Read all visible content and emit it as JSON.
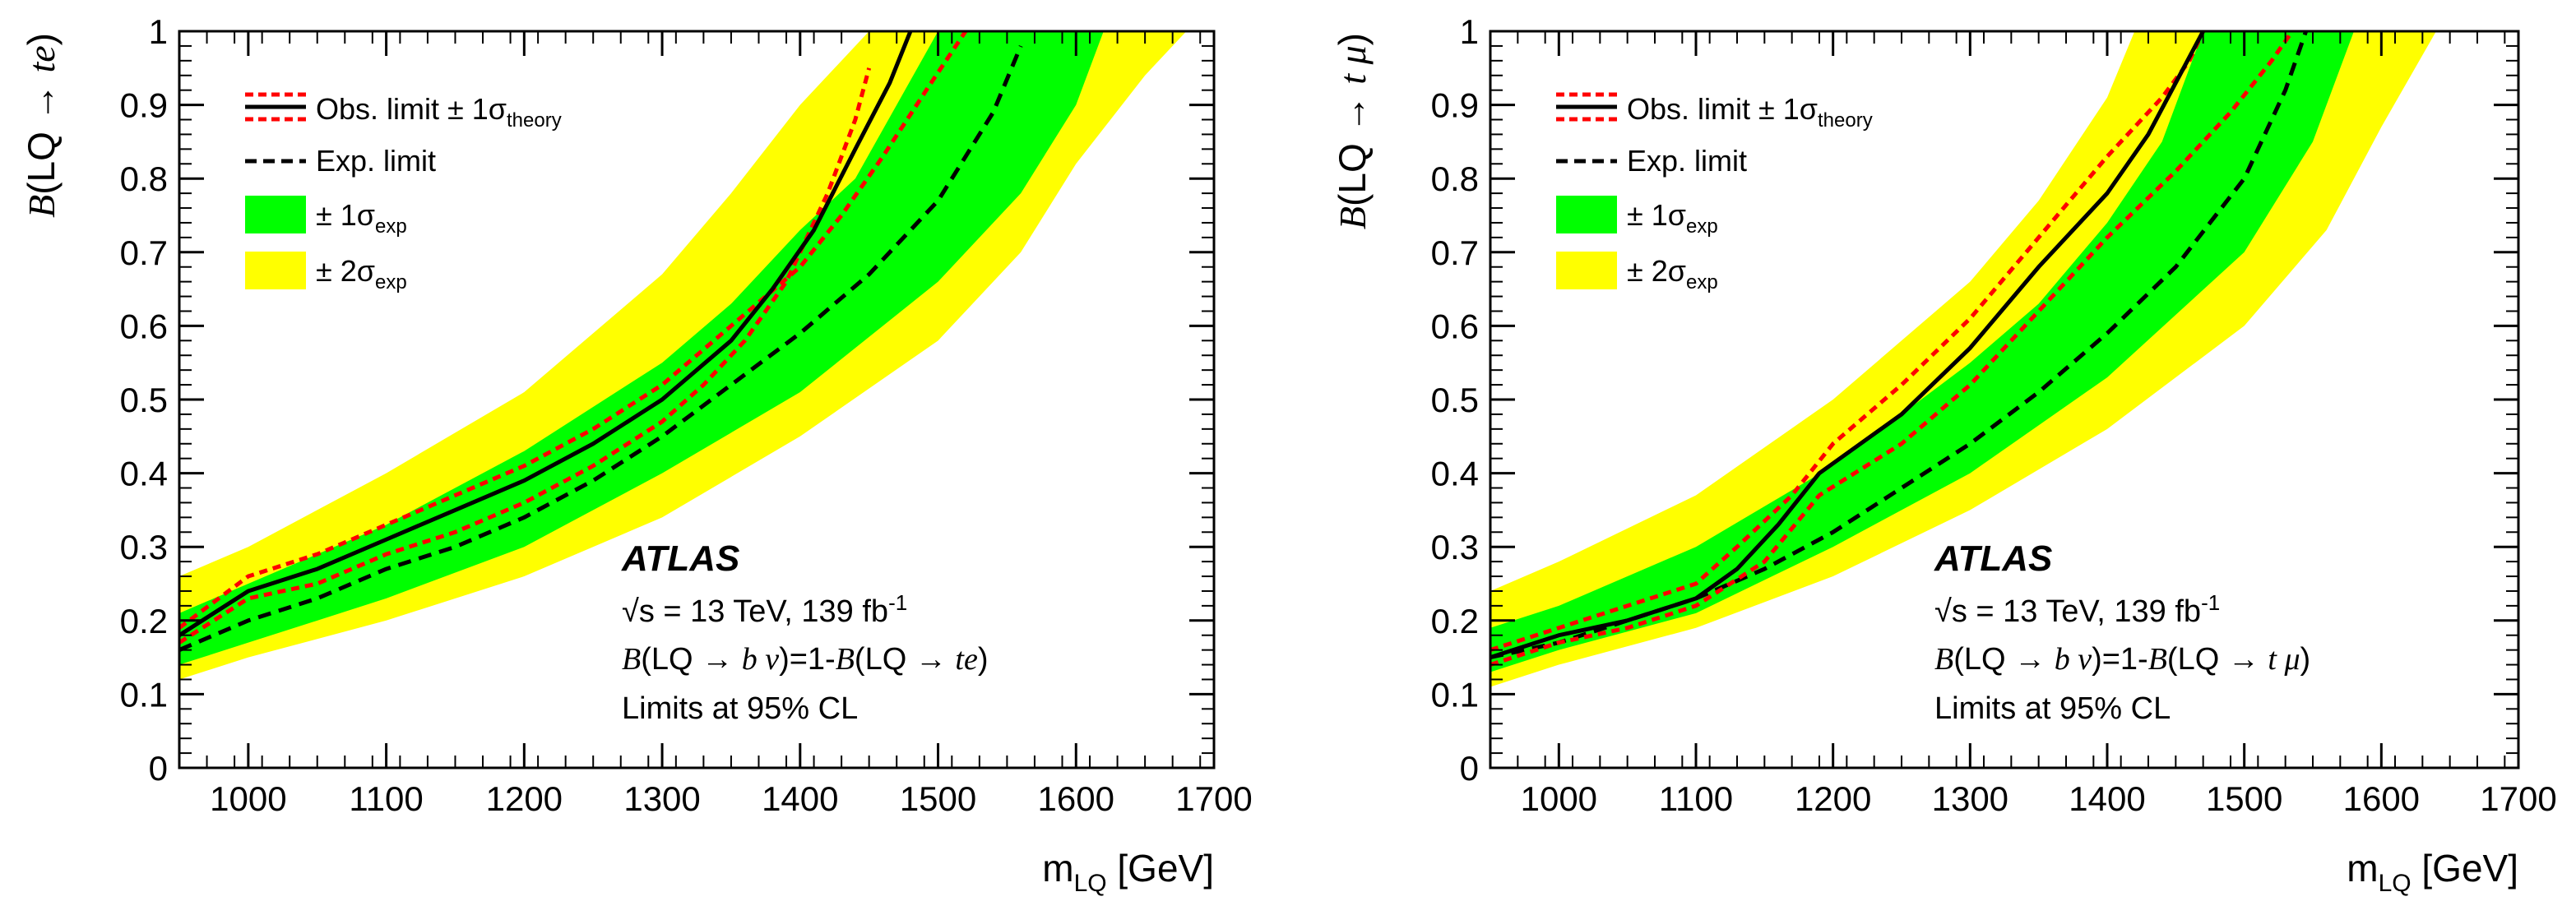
{
  "chart_data": [
    {
      "type": "line",
      "ylabel": {
        "prefix": "B",
        "text": "(LQ → ",
        "channel": "te",
        "suffix": ")"
      },
      "xlabel": {
        "main": "m",
        "sub": "LQ",
        "unit": " [GeV]"
      },
      "xlim": [
        950,
        1700
      ],
      "ylim": [
        0,
        1
      ],
      "xticks": [
        "1000",
        "1100",
        "1200",
        "1300",
        "1400",
        "1500",
        "1600",
        "1700"
      ],
      "yticks": [
        "0",
        "0.1",
        "0.2",
        "0.3",
        "0.4",
        "0.5",
        "0.6",
        "0.7",
        "0.8",
        "0.9",
        "1"
      ],
      "legend": {
        "obs": "Obs. limit ± 1σ",
        "obs_sub": "theory",
        "exp": "Exp. limit",
        "s1": "± 1σ",
        "s1_sub": "exp",
        "s2": "± 2σ",
        "s2_sub": "exp"
      },
      "annotation": {
        "experiment": "ATLAS",
        "energy": "√s = 13 TeV, 139 fb",
        "energy_sup": "-1",
        "br_prefix": "B",
        "br_mid": "(LQ → ",
        "br_bnu": "b ν",
        "br_eq": ")=1-",
        "br_b2": "B",
        "br_tail": "(LQ → ",
        "br_channel": "te",
        "br_close": ")",
        "cl": "Limits at 95% CL"
      },
      "colors": {
        "obs": "#000000",
        "theory": "#ff0000",
        "exp": "#000000",
        "band1": "#00ff00",
        "band2": "#ffff00"
      },
      "series": [
        {
          "name": "Observed",
          "x": [
            950,
            1000,
            1050,
            1100,
            1150,
            1200,
            1250,
            1300,
            1350,
            1380,
            1410,
            1440,
            1465,
            1480
          ],
          "y": [
            0.18,
            0.24,
            0.27,
            0.31,
            0.35,
            0.39,
            0.44,
            0.5,
            0.58,
            0.65,
            0.73,
            0.84,
            0.93,
            1.0
          ]
        },
        {
          "name": "Observed +1σ theory",
          "x": [
            950,
            1000,
            1050,
            1100,
            1150,
            1200,
            1250,
            1300,
            1350,
            1400,
            1430,
            1460,
            1495,
            1520
          ],
          "y": [
            0.19,
            0.26,
            0.29,
            0.33,
            0.37,
            0.41,
            0.46,
            0.52,
            0.6,
            0.68,
            0.75,
            0.83,
            0.93,
            1.0
          ]
        },
        {
          "name": "Observed -1σ theory",
          "x": [
            950,
            1000,
            1050,
            1100,
            1150,
            1200,
            1250,
            1300,
            1330,
            1360,
            1390,
            1420,
            1440,
            1450
          ],
          "y": [
            0.17,
            0.23,
            0.25,
            0.29,
            0.32,
            0.36,
            0.41,
            0.47,
            0.52,
            0.58,
            0.66,
            0.78,
            0.88,
            0.95
          ]
        },
        {
          "name": "Expected",
          "x": [
            950,
            1000,
            1050,
            1100,
            1150,
            1200,
            1250,
            1300,
            1350,
            1400,
            1450,
            1500,
            1540,
            1560
          ],
          "y": [
            0.16,
            0.2,
            0.23,
            0.27,
            0.3,
            0.34,
            0.39,
            0.45,
            0.52,
            0.59,
            0.67,
            0.77,
            0.89,
            0.98
          ]
        }
      ],
      "bands": [
        {
          "name": "± 2σ exp",
          "upper": {
            "x": [
              950,
              1000,
              1100,
              1200,
              1300,
              1350,
              1400,
              1450
            ],
            "y": [
              0.26,
              0.3,
              0.4,
              0.51,
              0.67,
              0.78,
              0.9,
              1.0
            ]
          },
          "lower": {
            "x": [
              950,
              1000,
              1100,
              1200,
              1300,
              1400,
              1500,
              1560,
              1600,
              1650,
              1680
            ],
            "y": [
              0.12,
              0.15,
              0.2,
              0.26,
              0.34,
              0.45,
              0.58,
              0.7,
              0.82,
              0.94,
              1.0
            ]
          }
        },
        {
          "name": "± 1σ exp",
          "upper": {
            "x": [
              950,
              1000,
              1100,
              1200,
              1300,
              1350,
              1400,
              1440,
              1470,
              1500
            ],
            "y": [
              0.21,
              0.25,
              0.33,
              0.43,
              0.55,
              0.63,
              0.73,
              0.8,
              0.9,
              1.0
            ]
          },
          "lower": {
            "x": [
              950,
              1000,
              1100,
              1200,
              1300,
              1400,
              1500,
              1560,
              1600,
              1620
            ],
            "y": [
              0.14,
              0.17,
              0.23,
              0.3,
              0.4,
              0.51,
              0.66,
              0.78,
              0.9,
              1.0
            ]
          }
        }
      ]
    },
    {
      "type": "line",
      "ylabel": {
        "prefix": "B",
        "text": "(LQ → ",
        "channel": "t μ",
        "suffix": ")"
      },
      "xlabel": {
        "main": "m",
        "sub": "LQ",
        "unit": " [GeV]"
      },
      "xlim": [
        950,
        1700
      ],
      "ylim": [
        0,
        1
      ],
      "xticks": [
        "1000",
        "1100",
        "1200",
        "1300",
        "1400",
        "1500",
        "1600",
        "1700"
      ],
      "yticks": [
        "0",
        "0.1",
        "0.2",
        "0.3",
        "0.4",
        "0.5",
        "0.6",
        "0.7",
        "0.8",
        "0.9",
        "1"
      ],
      "legend": {
        "obs": "Obs. limit ± 1σ",
        "obs_sub": "theory",
        "exp": "Exp. limit",
        "s1": "± 1σ",
        "s1_sub": "exp",
        "s2": "± 2σ",
        "s2_sub": "exp"
      },
      "annotation": {
        "experiment": "ATLAS",
        "energy": "√s = 13 TeV, 139 fb",
        "energy_sup": "-1",
        "br_prefix": "B",
        "br_mid": "(LQ → ",
        "br_bnu": "b ν",
        "br_eq": ")=1-",
        "br_b2": "B",
        "br_tail": "(LQ → ",
        "br_channel": "t μ",
        "br_close": ")",
        "cl": "Limits at 95% CL"
      },
      "colors": {
        "obs": "#000000",
        "theory": "#ff0000",
        "exp": "#000000",
        "band1": "#00ff00",
        "band2": "#ffff00"
      },
      "series": [
        {
          "name": "Observed",
          "x": [
            950,
            1000,
            1050,
            1100,
            1130,
            1160,
            1190,
            1250,
            1300,
            1350,
            1400,
            1430,
            1450,
            1470
          ],
          "y": [
            0.15,
            0.18,
            0.2,
            0.23,
            0.27,
            0.33,
            0.4,
            0.48,
            0.57,
            0.68,
            0.78,
            0.86,
            0.93,
            1.0
          ]
        },
        {
          "name": "Observed +1σ theory",
          "x": [
            950,
            1000,
            1050,
            1100,
            1130,
            1170,
            1200,
            1250,
            1300,
            1350,
            1400,
            1440,
            1460,
            1470
          ],
          "y": [
            0.16,
            0.19,
            0.22,
            0.25,
            0.3,
            0.37,
            0.44,
            0.52,
            0.61,
            0.72,
            0.83,
            0.91,
            0.96,
            1.0
          ]
        },
        {
          "name": "Observed -1σ theory",
          "x": [
            950,
            1000,
            1050,
            1100,
            1150,
            1190,
            1250,
            1300,
            1350,
            1400,
            1450,
            1490,
            1520,
            1535
          ],
          "y": [
            0.14,
            0.17,
            0.19,
            0.22,
            0.28,
            0.37,
            0.44,
            0.52,
            0.62,
            0.72,
            0.81,
            0.89,
            0.96,
            1.0
          ]
        },
        {
          "name": "Expected",
          "x": [
            950,
            1000,
            1050,
            1100,
            1150,
            1200,
            1250,
            1300,
            1350,
            1400,
            1450,
            1500,
            1530,
            1545
          ],
          "y": [
            0.15,
            0.17,
            0.2,
            0.23,
            0.27,
            0.32,
            0.38,
            0.44,
            0.51,
            0.59,
            0.68,
            0.8,
            0.92,
            1.0
          ]
        }
      ],
      "bands": [
        {
          "name": "± 2σ exp",
          "upper": {
            "x": [
              950,
              1000,
              1100,
              1200,
              1300,
              1350,
              1400,
              1420
            ],
            "y": [
              0.24,
              0.28,
              0.37,
              0.5,
              0.66,
              0.77,
              0.91,
              1.0
            ]
          },
          "lower": {
            "x": [
              950,
              1000,
              1100,
              1200,
              1300,
              1400,
              1500,
              1560,
              1600,
              1640
            ],
            "y": [
              0.11,
              0.14,
              0.19,
              0.26,
              0.35,
              0.46,
              0.6,
              0.73,
              0.87,
              1.0
            ]
          }
        },
        {
          "name": "± 1σ exp",
          "upper": {
            "x": [
              950,
              1000,
              1100,
              1200,
              1300,
              1350,
              1400,
              1440,
              1470
            ],
            "y": [
              0.19,
              0.22,
              0.3,
              0.41,
              0.55,
              0.63,
              0.74,
              0.85,
              1.0
            ]
          },
          "lower": {
            "x": [
              950,
              1000,
              1100,
              1200,
              1300,
              1400,
              1500,
              1550,
              1580
            ],
            "y": [
              0.13,
              0.16,
              0.21,
              0.3,
              0.4,
              0.53,
              0.7,
              0.85,
              1.0
            ]
          }
        }
      ]
    }
  ]
}
